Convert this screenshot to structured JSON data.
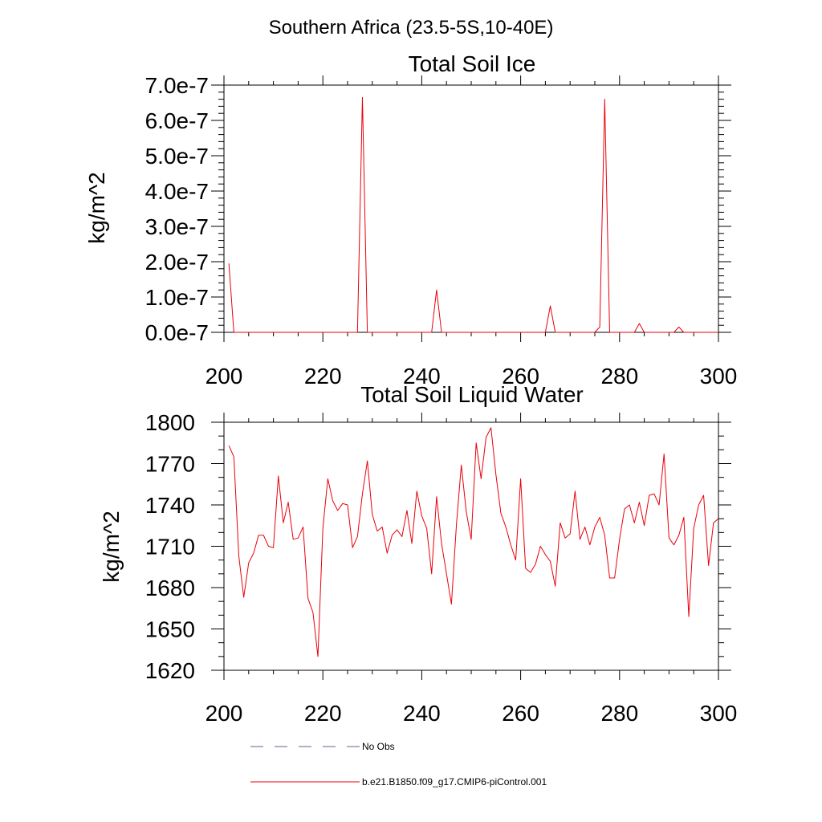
{
  "figure_title": "Southern Africa (23.5-5S,10-40E)",
  "chart_data": [
    {
      "type": "line",
      "title": "Total Soil Ice",
      "xlabel": "",
      "ylabel": "kg/m^2",
      "xlim": [
        200,
        300
      ],
      "ylim": [
        0,
        7e-07
      ],
      "x_ticks": [
        200,
        220,
        240,
        260,
        280,
        300
      ],
      "x_tick_labels": [
        "200",
        "220",
        "240",
        "260",
        "280",
        "300"
      ],
      "y_ticks": [
        0,
        1e-07,
        2e-07,
        3e-07,
        4e-07,
        5e-07,
        6e-07,
        7e-07
      ],
      "y_tick_labels": [
        "0.0e-7",
        "1.0e-7",
        "2.0e-7",
        "3.0e-7",
        "4.0e-7",
        "5.0e-7",
        "6.0e-7",
        "7.0e-7"
      ],
      "series": [
        {
          "name": "b.e21.B1850.f09_g17.CMIP6-piControl.001",
          "color": "#e8000b",
          "x": [
            201,
            202,
            203,
            210,
            220,
            226,
            227,
            228,
            229,
            230,
            240,
            241,
            242,
            243,
            244,
            250,
            255,
            260,
            264,
            265,
            266,
            267,
            268,
            272,
            275,
            276,
            277,
            278,
            279,
            282,
            283,
            284,
            285,
            290,
            291,
            292,
            293,
            296,
            300
          ],
          "y": [
            1.95e-07,
            0,
            0,
            0,
            0,
            0,
            0,
            6.65e-07,
            0,
            0,
            0,
            0,
            0,
            1.2e-07,
            0,
            0,
            0,
            0,
            0,
            0,
            7.5e-08,
            0,
            0,
            0,
            0,
            1.5e-08,
            6.6e-07,
            0,
            0,
            0,
            0,
            2.5e-08,
            0,
            0,
            0,
            1.5e-08,
            0,
            0,
            0
          ]
        }
      ]
    },
    {
      "type": "line",
      "title": "Total Soil Liquid Water",
      "xlabel": "",
      "ylabel": "kg/m^2",
      "xlim": [
        200,
        300
      ],
      "ylim": [
        1620,
        1800
      ],
      "x_ticks": [
        200,
        220,
        240,
        260,
        280,
        300
      ],
      "x_tick_labels": [
        "200",
        "220",
        "240",
        "260",
        "280",
        "300"
      ],
      "y_ticks": [
        1620,
        1650,
        1680,
        1710,
        1740,
        1770,
        1800
      ],
      "y_tick_labels": [
        "1620",
        "1650",
        "1680",
        "1710",
        "1740",
        "1770",
        "1800"
      ],
      "series": [
        {
          "name": "b.e21.B1850.f09_g17.CMIP6-piControl.001",
          "color": "#e8000b",
          "x": [
            201,
            202,
            203,
            204,
            205,
            206,
            207,
            208,
            209,
            210,
            211,
            212,
            213,
            214,
            215,
            216,
            217,
            218,
            219,
            220,
            221,
            222,
            223,
            224,
            225,
            226,
            227,
            228,
            229,
            230,
            231,
            232,
            233,
            234,
            235,
            236,
            237,
            238,
            239,
            240,
            241,
            242,
            243,
            244,
            245,
            246,
            247,
            248,
            249,
            250,
            251,
            252,
            253,
            254,
            255,
            256,
            257,
            258,
            259,
            260,
            261,
            262,
            263,
            264,
            265,
            266,
            267,
            268,
            269,
            270,
            271,
            272,
            273,
            274,
            275,
            276,
            277,
            278,
            279,
            280,
            281,
            282,
            283,
            284,
            285,
            286,
            287,
            288,
            289,
            290,
            291,
            292,
            293,
            294,
            295,
            296,
            297,
            298,
            299,
            300
          ],
          "y": [
            1783,
            1775,
            1703,
            1673,
            1698,
            1705,
            1718,
            1718,
            1710,
            1709,
            1761,
            1727,
            1742,
            1715,
            1716,
            1724,
            1672,
            1662,
            1630,
            1723,
            1759,
            1743,
            1736,
            1741,
            1740,
            1709,
            1717,
            1748,
            1772,
            1733,
            1721,
            1724,
            1705,
            1718,
            1722,
            1717,
            1736,
            1712,
            1750,
            1732,
            1723,
            1690,
            1746,
            1712,
            1690,
            1668,
            1725,
            1769,
            1735,
            1715,
            1785,
            1759,
            1789,
            1796,
            1762,
            1734,
            1724,
            1711,
            1700,
            1759,
            1694,
            1691,
            1697,
            1710,
            1704,
            1699,
            1681,
            1727,
            1716,
            1719,
            1750,
            1715,
            1724,
            1711,
            1724,
            1731,
            1718,
            1687,
            1687,
            1715,
            1737,
            1740,
            1727,
            1742,
            1725,
            1747,
            1748,
            1740,
            1777,
            1716,
            1711,
            1718,
            1731,
            1659,
            1723,
            1740,
            1747,
            1696,
            1727,
            1730
          ]
        }
      ]
    }
  ],
  "legend": {
    "entries": [
      {
        "label": "No Obs",
        "style": "dashed",
        "color": "#5a6690"
      },
      {
        "label": "b.e21.B1850.f09_g17.CMIP6-piControl.001",
        "style": "solid",
        "color": "#e8000b"
      }
    ]
  }
}
